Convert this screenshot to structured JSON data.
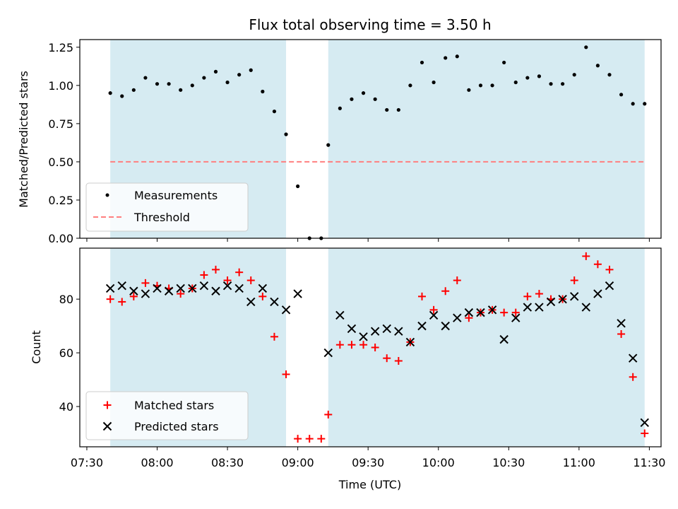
{
  "title": "Flux total observing time = 3.50 h",
  "colors": {
    "shade": "#add8e6",
    "measurement": "#000000",
    "threshold": "#ff7f7f",
    "matched": "#ff0000",
    "predicted": "#000000"
  },
  "chart_data": [
    {
      "type": "scatter",
      "panel": "top",
      "ylabel": "Matched/Predicted stars",
      "ylim": [
        0.0,
        1.3
      ],
      "yticks": [
        0.0,
        0.25,
        0.5,
        0.75,
        1.0,
        1.25
      ],
      "ytick_labels": [
        "0.00",
        "0.25",
        "0.50",
        "0.75",
        "1.00",
        "1.25"
      ],
      "xlim": [
        "07:27",
        "11:35"
      ],
      "shaded_spans": [
        [
          "07:40",
          "08:55"
        ],
        [
          "09:13",
          "11:28"
        ]
      ],
      "threshold": 0.5,
      "legend": {
        "placement": "lower left",
        "entries": [
          "Measurements",
          "Threshold"
        ]
      },
      "series": [
        {
          "name": "Measurements",
          "x": [
            "07:40",
            "07:45",
            "07:50",
            "07:55",
            "08:00",
            "08:05",
            "08:10",
            "08:15",
            "08:20",
            "08:25",
            "08:30",
            "08:35",
            "08:40",
            "08:45",
            "08:50",
            "08:55",
            "09:00",
            "09:05",
            "09:10",
            "09:13",
            "09:18",
            "09:23",
            "09:28",
            "09:33",
            "09:38",
            "09:43",
            "09:48",
            "09:53",
            "09:58",
            "10:03",
            "10:08",
            "10:13",
            "10:18",
            "10:23",
            "10:28",
            "10:33",
            "10:38",
            "10:43",
            "10:48",
            "10:53",
            "10:58",
            "11:03",
            "11:08",
            "11:13",
            "11:18",
            "11:23",
            "11:28"
          ],
          "y": [
            0.95,
            0.93,
            0.97,
            1.05,
            1.01,
            1.01,
            0.97,
            1.0,
            1.05,
            1.09,
            1.02,
            1.07,
            1.1,
            0.96,
            0.83,
            0.68,
            0.34,
            0.0,
            0.0,
            0.61,
            0.85,
            0.91,
            0.95,
            0.91,
            0.84,
            0.84,
            1.0,
            1.15,
            1.02,
            1.18,
            1.19,
            0.97,
            1.0,
            1.0,
            1.15,
            1.02,
            1.05,
            1.06,
            1.01,
            1.01,
            1.07,
            1.25,
            1.13,
            1.07,
            0.94,
            0.88,
            0.88
          ]
        }
      ]
    },
    {
      "type": "scatter",
      "panel": "bottom",
      "xlabel": "Time (UTC)",
      "ylabel": "Count",
      "ylim": [
        25,
        99
      ],
      "yticks": [
        40,
        60,
        80
      ],
      "ytick_labels": [
        "40",
        "60",
        "80"
      ],
      "xlim": [
        "07:27",
        "11:35"
      ],
      "xticks": [
        "07:30",
        "08:00",
        "08:30",
        "09:00",
        "09:30",
        "10:00",
        "10:30",
        "11:00",
        "11:30"
      ],
      "shaded_spans": [
        [
          "07:40",
          "08:55"
        ],
        [
          "09:13",
          "11:28"
        ]
      ],
      "legend": {
        "placement": "lower left",
        "entries": [
          "Matched stars",
          "Predicted stars"
        ]
      },
      "series": [
        {
          "name": "Matched stars",
          "x": [
            "07:40",
            "07:45",
            "07:50",
            "07:55",
            "08:00",
            "08:05",
            "08:10",
            "08:15",
            "08:20",
            "08:25",
            "08:30",
            "08:35",
            "08:40",
            "08:45",
            "08:50",
            "08:55",
            "09:00",
            "09:05",
            "09:10",
            "09:13",
            "09:18",
            "09:23",
            "09:28",
            "09:33",
            "09:38",
            "09:43",
            "09:48",
            "09:53",
            "09:58",
            "10:03",
            "10:08",
            "10:13",
            "10:18",
            "10:23",
            "10:28",
            "10:33",
            "10:38",
            "10:43",
            "10:48",
            "10:53",
            "10:58",
            "11:03",
            "11:08",
            "11:13",
            "11:18",
            "11:23",
            "11:28"
          ],
          "y": [
            80,
            79,
            81,
            86,
            85,
            84,
            82,
            84,
            89,
            91,
            87,
            90,
            87,
            81,
            66,
            52,
            28,
            28,
            28,
            37,
            63,
            63,
            63,
            62,
            58,
            57,
            64,
            81,
            76,
            83,
            87,
            73,
            75,
            76,
            75,
            75,
            81,
            82,
            80,
            80,
            87,
            96,
            93,
            91,
            67,
            51,
            30
          ]
        },
        {
          "name": "Predicted stars",
          "x": [
            "07:40",
            "07:45",
            "07:50",
            "07:55",
            "08:00",
            "08:05",
            "08:10",
            "08:15",
            "08:20",
            "08:25",
            "08:30",
            "08:35",
            "08:40",
            "08:45",
            "08:50",
            "08:55",
            "09:00",
            "09:13",
            "09:18",
            "09:23",
            "09:28",
            "09:33",
            "09:38",
            "09:43",
            "09:48",
            "09:53",
            "09:58",
            "10:03",
            "10:08",
            "10:13",
            "10:18",
            "10:23",
            "10:28",
            "10:33",
            "10:38",
            "10:43",
            "10:48",
            "10:53",
            "10:58",
            "11:03",
            "11:08",
            "11:13",
            "11:18",
            "11:23",
            "11:28"
          ],
          "y": [
            84,
            85,
            83,
            82,
            84,
            83,
            84,
            84,
            85,
            83,
            85,
            84,
            79,
            84,
            79,
            76,
            82,
            60,
            74,
            69,
            66,
            68,
            69,
            68,
            64,
            70,
            74,
            70,
            73,
            75,
            75,
            76,
            65,
            73,
            77,
            77,
            79,
            80,
            81,
            77,
            82,
            85,
            71,
            58,
            34
          ]
        }
      ]
    }
  ]
}
